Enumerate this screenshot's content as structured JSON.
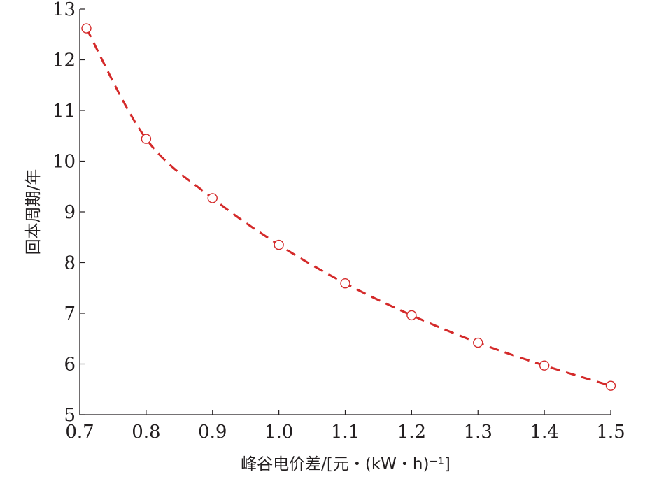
{
  "chart_data": {
    "type": "line",
    "xlabel": "峰谷电价差/[元・(kW・h)⁻¹]",
    "ylabel": "回本周期/年",
    "xlim": [
      0.7,
      1.5
    ],
    "ylim": [
      5,
      13
    ],
    "xticks": [
      "0.7",
      "0.8",
      "0.9",
      "1.0",
      "1.1",
      "1.2",
      "1.3",
      "1.4",
      "1.5"
    ],
    "yticks": [
      "5",
      "6",
      "7",
      "8",
      "9",
      "10",
      "11",
      "12",
      "13"
    ],
    "grid": false,
    "legend": "none",
    "series": [
      {
        "x": [
          0.71,
          0.8,
          0.9,
          1.0,
          1.1,
          1.2,
          1.3,
          1.4,
          1.5
        ],
        "y": [
          12.62,
          10.44,
          9.27,
          8.35,
          7.59,
          6.96,
          6.42,
          5.97,
          5.57
        ],
        "color": "#d42a2a",
        "line_style": "dashed",
        "marker": "open-circle"
      }
    ]
  }
}
